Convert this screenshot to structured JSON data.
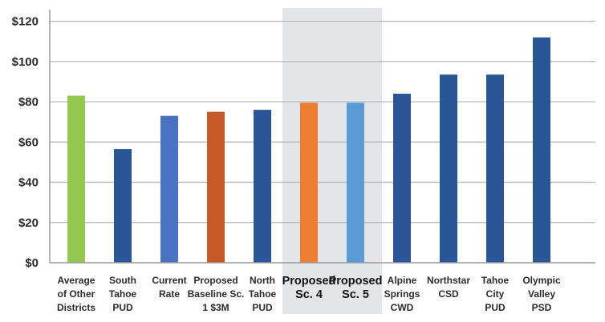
{
  "chart_data": {
    "type": "bar",
    "categories": [
      [
        "Average",
        "of Other",
        "Districts"
      ],
      [
        "South",
        "Tahoe",
        "PUD"
      ],
      [
        "Current",
        "Rate"
      ],
      [
        "Proposed",
        "Baseline Sc.",
        "1 $3M"
      ],
      [
        "North",
        "Tahoe",
        "PUD"
      ],
      [
        "Proposed",
        "Sc. 4"
      ],
      [
        "Proposed",
        "Sc. 5"
      ],
      [
        "Alpine",
        "Springs",
        "CWD"
      ],
      [
        "Northstar",
        "CSD"
      ],
      [
        "Tahoe",
        "City",
        "PUD"
      ],
      [
        "Olympic",
        "Valley",
        "PSD"
      ]
    ],
    "values": [
      83,
      56.5,
      73,
      75,
      76,
      79.5,
      79.5,
      84,
      93.5,
      93.5,
      112
    ],
    "bar_colors": [
      "#92c94e",
      "#2a5597",
      "#4a72c2",
      "#c45a25",
      "#2a5597",
      "#ed7d31",
      "#5b9bd5",
      "#2a5597",
      "#2a5597",
      "#2a5597",
      "#2a5597"
    ],
    "emphasized_categories": [
      5,
      6
    ],
    "highlight_band": {
      "from_category": 5,
      "to_category": 6,
      "color": "#e4e5e8"
    },
    "ylim": [
      0,
      125
    ],
    "yticks": [
      0,
      20,
      40,
      60,
      80,
      100,
      120
    ],
    "ytick_labels": [
      "$0",
      "$20",
      "$40",
      "$60",
      "$80",
      "$100",
      "$120"
    ],
    "grid": true,
    "grid_color": "#b3b3b3",
    "title": "",
    "xlabel": "",
    "ylabel": ""
  }
}
